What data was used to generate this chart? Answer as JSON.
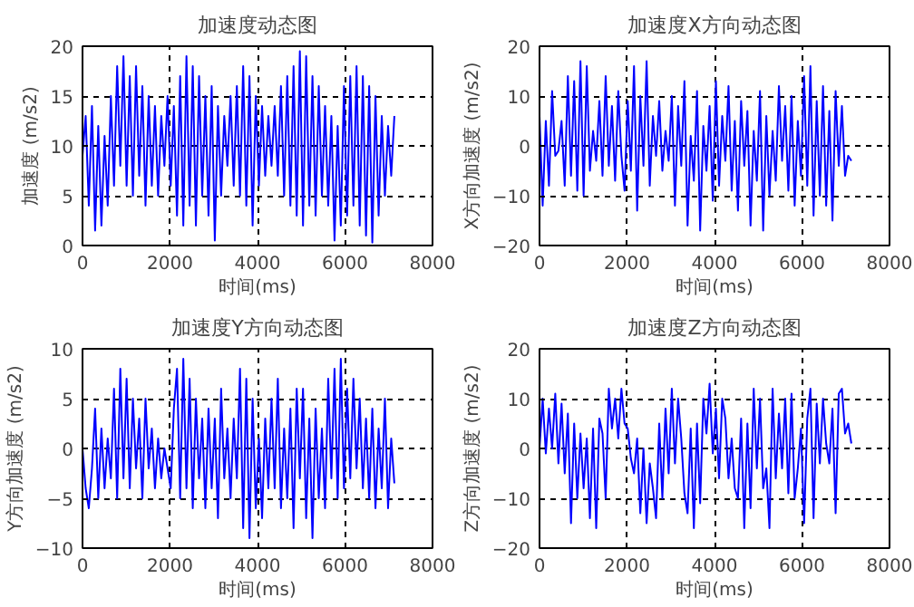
{
  "chart_data": [
    {
      "type": "line",
      "title": "加速度动态图",
      "xlabel": "时间(ms)",
      "ylabel": "加速度 (m/s2)",
      "xlim": [
        0,
        8000
      ],
      "ylim": [
        0,
        20
      ],
      "xticks": [
        0,
        2000,
        4000,
        6000,
        8000
      ],
      "yticks": [
        0,
        5,
        10,
        15,
        20
      ],
      "grid": true,
      "x": [
        0,
        72,
        144,
        216,
        288,
        360,
        432,
        504,
        576,
        648,
        720,
        792,
        864,
        936,
        1008,
        1080,
        1152,
        1224,
        1296,
        1368,
        1440,
        1512,
        1584,
        1656,
        1728,
        1800,
        1872,
        1944,
        2016,
        2088,
        2160,
        2232,
        2304,
        2376,
        2448,
        2520,
        2592,
        2664,
        2736,
        2808,
        2880,
        2952,
        3024,
        3096,
        3168,
        3240,
        3312,
        3384,
        3456,
        3528,
        3600,
        3672,
        3744,
        3816,
        3888,
        3960,
        4032,
        4104,
        4176,
        4248,
        4320,
        4392,
        4464,
        4536,
        4608,
        4680,
        4752,
        4824,
        4896,
        4968,
        5040,
        5112,
        5184,
        5256,
        5328,
        5400,
        5472,
        5544,
        5616,
        5688,
        5760,
        5832,
        5904,
        5976,
        6048,
        6120,
        6192,
        6264,
        6336,
        6408,
        6480,
        6552,
        6624,
        6696,
        6768,
        6840,
        6912,
        6984,
        7056,
        7128
      ],
      "series": [
        {
          "color": "#0000ff",
          "values": [
            9,
            13,
            4,
            14,
            1.5,
            12,
            2,
            11,
            4,
            15,
            6,
            18,
            8,
            19,
            6,
            17,
            5,
            18,
            7,
            16,
            4,
            15,
            6,
            14,
            5,
            13,
            8,
            15,
            6,
            14,
            3,
            17,
            2,
            19,
            4,
            18,
            2,
            17,
            5,
            15,
            3,
            16,
            0.5,
            14,
            5,
            13,
            8,
            15,
            6,
            16,
            5,
            18,
            4,
            17,
            2,
            15,
            6,
            14,
            7,
            13,
            8,
            14,
            7,
            16,
            5,
            17,
            4,
            18,
            3,
            19.5,
            2,
            19,
            4,
            17,
            3,
            16,
            5,
            14,
            4,
            13,
            0.5,
            12,
            2,
            16,
            3,
            17,
            4,
            18,
            2,
            17,
            1,
            16,
            0.3,
            15,
            3,
            13,
            5,
            12,
            7,
            13
          ]
        }
      ]
    },
    {
      "type": "line",
      "title": "加速度X方向动态图",
      "xlabel": "时间(ms)",
      "ylabel": "X方向加速度 (m/s2)",
      "xlim": [
        0,
        8000
      ],
      "ylim": [
        -20,
        20
      ],
      "xticks": [
        0,
        2000,
        4000,
        6000,
        8000
      ],
      "yticks": [
        -20,
        -10,
        0,
        10,
        20
      ],
      "grid": true,
      "x": [
        0,
        72,
        144,
        216,
        288,
        360,
        432,
        504,
        576,
        648,
        720,
        792,
        864,
        936,
        1008,
        1080,
        1152,
        1224,
        1296,
        1368,
        1440,
        1512,
        1584,
        1656,
        1728,
        1800,
        1872,
        1944,
        2016,
        2088,
        2160,
        2232,
        2304,
        2376,
        2448,
        2520,
        2592,
        2664,
        2736,
        2808,
        2880,
        2952,
        3024,
        3096,
        3168,
        3240,
        3312,
        3384,
        3456,
        3528,
        3600,
        3672,
        3744,
        3816,
        3888,
        3960,
        4032,
        4104,
        4176,
        4248,
        4320,
        4392,
        4464,
        4536,
        4608,
        4680,
        4752,
        4824,
        4896,
        4968,
        5040,
        5112,
        5184,
        5256,
        5328,
        5400,
        5472,
        5544,
        5616,
        5688,
        5760,
        5832,
        5904,
        5976,
        6048,
        6120,
        6192,
        6264,
        6336,
        6408,
        6480,
        6552,
        6624,
        6696,
        6768,
        6840,
        6912,
        6984,
        7056,
        7128
      ],
      "series": [
        {
          "color": "#0000ff",
          "values": [
            6,
            -12,
            5,
            -8,
            11,
            -2,
            -1,
            5,
            -8,
            14,
            -6,
            13,
            -9,
            17,
            -10,
            16,
            -5,
            3,
            -3,
            9,
            -6,
            14,
            -4,
            8,
            -7,
            11,
            -2,
            -9,
            9,
            -5,
            16,
            -13,
            10,
            -4,
            17,
            -8,
            6,
            -2,
            9,
            -5,
            3,
            -3,
            10,
            -12,
            8,
            -4,
            13,
            -16,
            2,
            -7,
            11,
            -17,
            4,
            -5,
            8,
            -11,
            13,
            -8,
            6,
            -3,
            12,
            -9,
            5,
            -13,
            9,
            -4,
            7,
            -16,
            3,
            -7,
            11,
            -17,
            6,
            -10,
            3,
            -7,
            12,
            -3,
            8,
            -9,
            10,
            -12,
            5,
            -6,
            14,
            -8,
            16,
            -14,
            9,
            -10,
            12,
            -12,
            7,
            -15,
            11,
            -4,
            8,
            -6,
            -2,
            -3
          ]
        }
      ]
    },
    {
      "type": "line",
      "title": "加速度Y方向动态图",
      "xlabel": "时间(ms)",
      "ylabel": "Y方向加速度 (m/s2)",
      "xlim": [
        0,
        8000
      ],
      "ylim": [
        -10,
        10
      ],
      "xticks": [
        0,
        2000,
        4000,
        6000,
        8000
      ],
      "yticks": [
        -10,
        -5,
        0,
        5,
        10
      ],
      "grid": true,
      "x": [
        0,
        72,
        144,
        216,
        288,
        360,
        432,
        504,
        576,
        648,
        720,
        792,
        864,
        936,
        1008,
        1080,
        1152,
        1224,
        1296,
        1368,
        1440,
        1512,
        1584,
        1656,
        1728,
        1800,
        1872,
        1944,
        2016,
        2088,
        2160,
        2232,
        2304,
        2376,
        2448,
        2520,
        2592,
        2664,
        2736,
        2808,
        2880,
        2952,
        3024,
        3096,
        3168,
        3240,
        3312,
        3384,
        3456,
        3528,
        3600,
        3672,
        3744,
        3816,
        3888,
        3960,
        4032,
        4104,
        4176,
        4248,
        4320,
        4392,
        4464,
        4536,
        4608,
        4680,
        4752,
        4824,
        4896,
        4968,
        5040,
        5112,
        5184,
        5256,
        5328,
        5400,
        5472,
        5544,
        5616,
        5688,
        5760,
        5832,
        5904,
        5976,
        6048,
        6120,
        6192,
        6264,
        6336,
        6408,
        6480,
        6552,
        6624,
        6696,
        6768,
        6840,
        6912,
        6984,
        7056,
        7128
      ],
      "series": [
        {
          "color": "#0000ff",
          "values": [
            0,
            -4,
            -6,
            -2,
            4,
            -5,
            2,
            -4,
            1,
            -3,
            6,
            -5,
            8,
            -3,
            7,
            -4,
            5,
            -2,
            3,
            -5,
            5,
            -2,
            2,
            -4,
            1,
            -3,
            0,
            -2,
            -4,
            4,
            8,
            -5,
            9,
            -4,
            7,
            -6,
            5,
            -3,
            3,
            -6,
            4,
            -4,
            3,
            -7,
            6,
            -3,
            2,
            -5,
            3,
            -3,
            8,
            -8,
            7,
            -9,
            5,
            -6,
            1,
            -7,
            3,
            -4,
            5,
            -4,
            7,
            -6,
            2,
            -5,
            4,
            -8,
            6,
            -3,
            6,
            -7,
            3,
            -9,
            4,
            -5,
            2,
            -6,
            7,
            -3,
            8,
            -5,
            9,
            -4,
            6,
            -3,
            7,
            -2,
            5,
            -4,
            3,
            -5,
            4,
            -6,
            2,
            -4,
            5,
            -6,
            1,
            -3.5
          ]
        }
      ]
    },
    {
      "type": "line",
      "title": "加速度Z方向动态图",
      "xlabel": "时间(ms)",
      "ylabel": "Z方向加速度 (m/s2)",
      "xlim": [
        0,
        8000
      ],
      "ylim": [
        -20,
        20
      ],
      "xticks": [
        0,
        2000,
        4000,
        6000,
        8000
      ],
      "yticks": [
        -20,
        -10,
        0,
        10,
        20
      ],
      "grid": true,
      "x": [
        0,
        72,
        144,
        216,
        288,
        360,
        432,
        504,
        576,
        648,
        720,
        792,
        864,
        936,
        1008,
        1080,
        1152,
        1224,
        1296,
        1368,
        1440,
        1512,
        1584,
        1656,
        1728,
        1800,
        1872,
        1944,
        2016,
        2088,
        2160,
        2232,
        2304,
        2376,
        2448,
        2520,
        2592,
        2664,
        2736,
        2808,
        2880,
        2952,
        3024,
        3096,
        3168,
        3240,
        3312,
        3384,
        3456,
        3528,
        3600,
        3672,
        3744,
        3816,
        3888,
        3960,
        4032,
        4104,
        4176,
        4248,
        4320,
        4392,
        4464,
        4536,
        4608,
        4680,
        4752,
        4824,
        4896,
        4968,
        5040,
        5112,
        5184,
        5256,
        5328,
        5400,
        5472,
        5544,
        5616,
        5688,
        5760,
        5832,
        5904,
        5976,
        6048,
        6120,
        6192,
        6264,
        6336,
        6408,
        6480,
        6552,
        6624,
        6696,
        6768,
        6840,
        6912,
        6984,
        7056,
        7128
      ],
      "series": [
        {
          "color": "#0000ff",
          "values": [
            0,
            10,
            -1,
            8,
            0,
            11,
            -3,
            9,
            -5,
            7,
            -15,
            5,
            -10,
            3,
            -8,
            2,
            -14,
            4,
            -16,
            6,
            3,
            -10,
            12,
            4,
            10,
            2,
            12,
            5,
            4,
            -2,
            -5,
            2,
            -13,
            0,
            -15,
            -3,
            -8,
            -14,
            5,
            -10,
            8,
            -5,
            12,
            -3,
            10,
            2,
            -9,
            -13,
            4,
            -16,
            5,
            -11,
            10,
            3,
            13,
            -1,
            8,
            -6,
            10,
            6,
            -6,
            2,
            -8,
            -10,
            6,
            -16,
            5,
            -12,
            12,
            -4,
            10,
            -8,
            -4,
            -16,
            12,
            -6,
            7,
            -4,
            10,
            -9,
            11,
            -10,
            -4,
            4,
            -15,
            6,
            12,
            -14,
            9,
            -3,
            10,
            1,
            -3,
            8,
            -13,
            11,
            12,
            3,
            5,
            1
          ]
        }
      ]
    }
  ]
}
